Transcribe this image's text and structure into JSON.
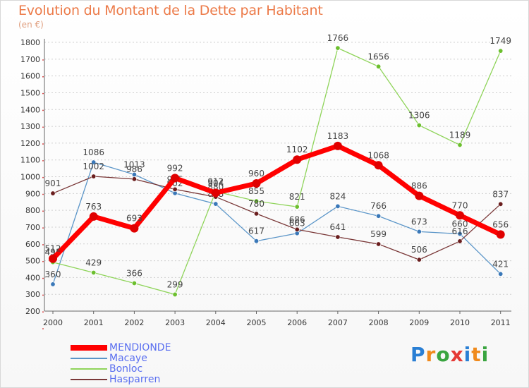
{
  "title": "Evolution du Montant de la Dette par Habitant",
  "subtitle": "(en €)",
  "logo": {
    "letters": [
      "P",
      "r",
      "o",
      "x",
      "i",
      "t",
      "i"
    ],
    "colors": [
      "#2a7fd4",
      "#f08a1c",
      "#3aa540",
      "#e53935",
      "#2a7fd4",
      "#f08a1c",
      "#3aa540"
    ]
  },
  "chart_data": {
    "type": "line",
    "categories": [
      "2000",
      "2001",
      "2002",
      "2003",
      "2004",
      "2005",
      "2006",
      "2007",
      "2008",
      "2009",
      "2010",
      "2011"
    ],
    "y_ticks": [
      "200",
      "300",
      "400",
      "500",
      "600",
      "700",
      "800",
      "900",
      "1000",
      "1100",
      "1200",
      "1300",
      "1400",
      "1500",
      "1600",
      "1700",
      "1800"
    ],
    "ylim": [
      200,
      1800
    ],
    "grid": "horizontal dashed",
    "legend_position": "bottom-left",
    "series": [
      {
        "name": "Macaye",
        "color": "#5a95c8",
        "marker": "#3a78b8",
        "emphasis": false,
        "values": [
          360,
          1086,
          1013,
          902,
          838,
          617,
          663,
          824,
          766,
          673,
          660,
          421
        ],
        "labels": [
          "360",
          "1086",
          "1013",
          "902",
          "838",
          "617",
          "663",
          "824",
          "766",
          "673",
          "660",
          "421"
        ]
      },
      {
        "name": "Bonloc",
        "color": "#8fd45a",
        "marker": "#6cbf2e",
        "emphasis": false,
        "values": [
          491,
          429,
          366,
          299,
          912,
          855,
          821,
          1766,
          1656,
          1306,
          1189,
          1749
        ],
        "labels": [
          "491",
          "429",
          "366",
          "299",
          "912",
          "855",
          "821",
          "1766",
          "1656",
          "1306",
          "1189",
          "1749"
        ]
      },
      {
        "name": "Hasparren",
        "color": "#7a3838",
        "marker": "#6a1e1e",
        "emphasis": false,
        "values": [
          901,
          1002,
          986,
          925,
          880,
          780,
          686,
          641,
          599,
          506,
          616,
          837
        ],
        "labels": [
          "901",
          "1002",
          "986",
          "925",
          "880",
          "780",
          "686",
          "641",
          "599",
          "506",
          "616",
          "837"
        ]
      },
      {
        "name": "MENDIONDE",
        "color": "#ff0000",
        "marker": "#e00000",
        "emphasis": true,
        "values": [
          512,
          763,
          693,
          992,
          904,
          960,
          1102,
          1183,
          1068,
          886,
          770,
          656
        ],
        "labels": [
          "512",
          "763",
          "693",
          "992",
          "904",
          "960",
          "1102",
          "1183",
          "1068",
          "886",
          "770",
          "656"
        ]
      }
    ],
    "legend_order": [
      3,
      0,
      1,
      2
    ]
  }
}
